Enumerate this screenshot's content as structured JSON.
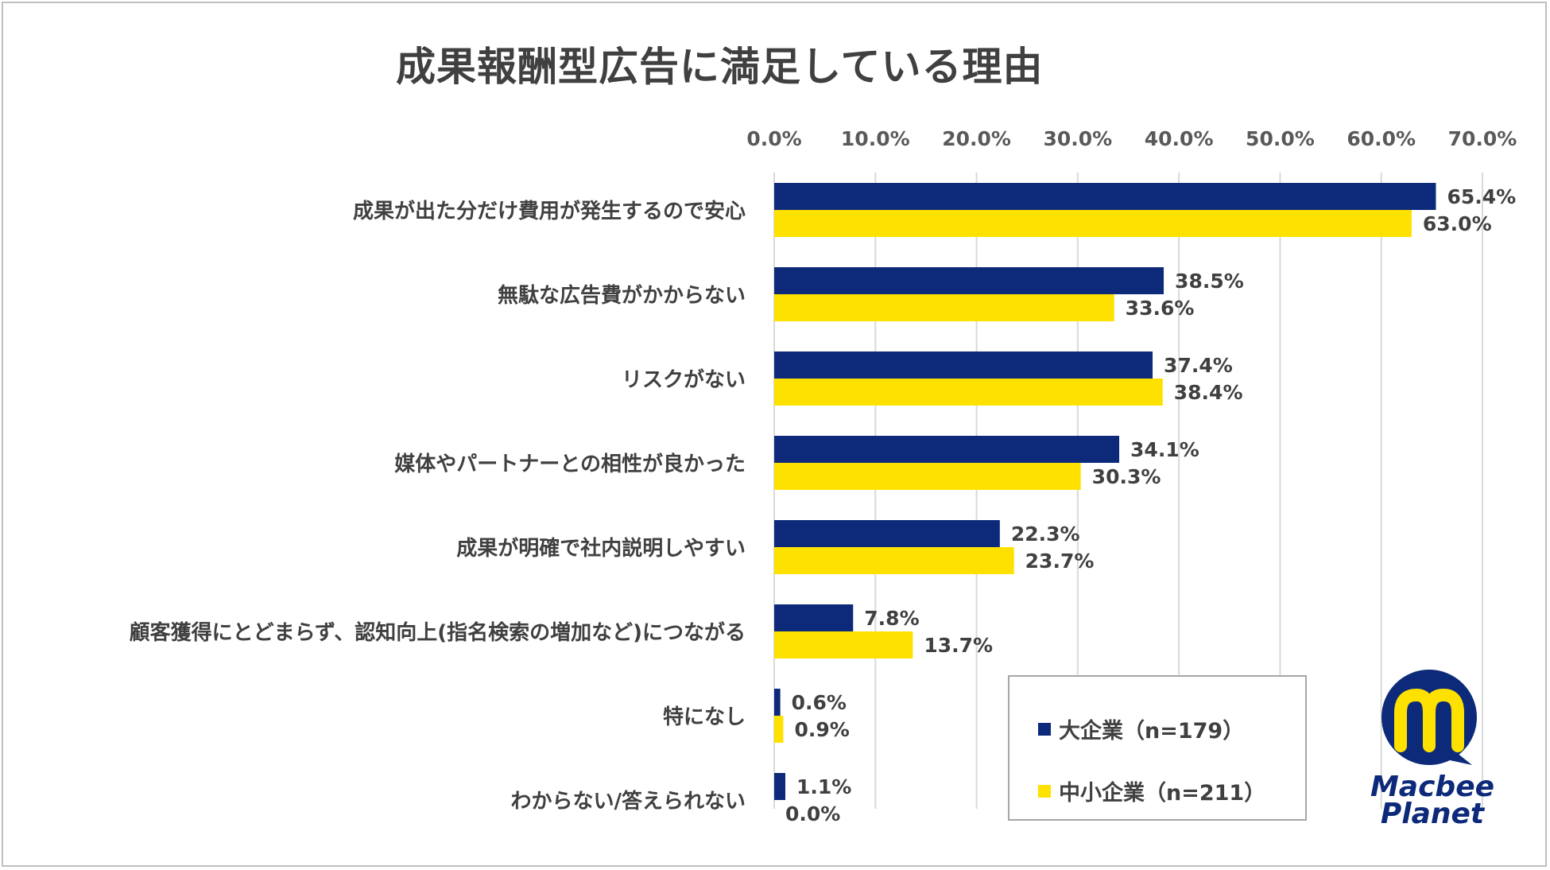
{
  "title": "成果報酬型広告に満足している理由",
  "colors": {
    "large": "#0d2a7a",
    "small": "#ffe100",
    "grid": "#d9d9d9"
  },
  "legend": {
    "placement": "bottom-right",
    "items": [
      {
        "label": "大企業（n=179）",
        "color": "#0d2a7a"
      },
      {
        "label": "中小企業（n=211）",
        "color": "#ffe100"
      }
    ]
  },
  "logo": {
    "line1": "Macbee",
    "line2": "Planet"
  },
  "chart_data": {
    "type": "bar",
    "orientation": "horizontal",
    "title": "成果報酬型広告に満足している理由",
    "xlim": [
      0,
      70
    ],
    "x_tick_values": [
      0,
      10,
      20,
      30,
      40,
      50,
      60,
      70
    ],
    "x_tick_labels": [
      "0.0%",
      "10.0%",
      "20.0%",
      "30.0%",
      "40.0%",
      "50.0%",
      "60.0%",
      "70.0%"
    ],
    "axis_position": "top",
    "grid": true,
    "categories": [
      "成果が出た分だけ費用が発生するので安心",
      "無駄な広告費がかからない",
      "リスクがない",
      "媒体やパートナーとの相性が良かった",
      "成果が明確で社内説明しやすい",
      "顧客獲得にとどまらず、認知向上(指名検索の増加など)につながる",
      "特になし",
      "わからない/答えられない"
    ],
    "series": [
      {
        "name": "大企業（n=179）",
        "values": [
          65.4,
          38.5,
          37.4,
          34.1,
          22.3,
          7.8,
          0.6,
          1.1
        ],
        "labels": [
          "65.4%",
          "38.5%",
          "37.4%",
          "34.1%",
          "22.3%",
          "7.8%",
          "0.6%",
          "1.1%"
        ]
      },
      {
        "name": "中小企業（n=211）",
        "values": [
          63.0,
          33.6,
          38.4,
          30.3,
          23.7,
          13.7,
          0.9,
          0.0
        ],
        "labels": [
          "63.0%",
          "33.6%",
          "38.4%",
          "30.3%",
          "23.7%",
          "13.7%",
          "0.9%",
          "0.0%"
        ]
      }
    ]
  }
}
